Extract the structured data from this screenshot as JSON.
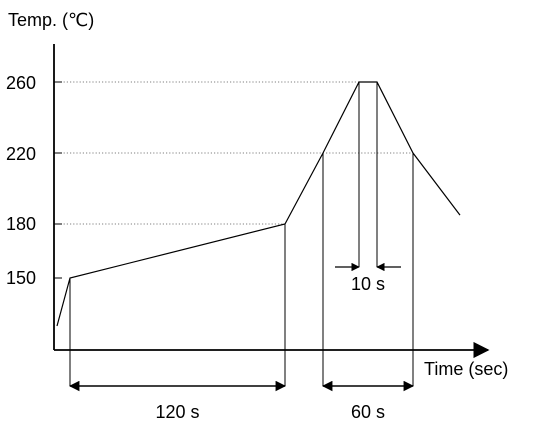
{
  "chart_data": {
    "type": "line",
    "title": "",
    "ylabel": "Temp. (℃)",
    "xlabel": "Time (sec)",
    "yticks": [
      "260",
      "220",
      "180",
      "150"
    ],
    "grid": "dotted reference lines at 260, 220, 180",
    "series": [
      {
        "values_description_only": "",
        "points": [
          {
            "t": -6,
            "temp": 120
          },
          {
            "t": 0,
            "temp": 150
          },
          {
            "t": 120,
            "temp": 180
          },
          {
            "t": 140,
            "temp": 220
          },
          {
            "t": 162,
            "temp": 260
          },
          {
            "t": 172,
            "temp": 260
          },
          {
            "t": 200,
            "temp": 220
          },
          {
            "t": 225,
            "temp": 185
          }
        ]
      }
    ],
    "annotations": [
      {
        "label": "120 s",
        "from_t": 0,
        "to_t": 120,
        "kind": "dimension-below-axis"
      },
      {
        "label": "60 s",
        "from_t": 140,
        "to_t": 200,
        "kind": "dimension-below-axis"
      },
      {
        "label": "10 s",
        "from_t": 162,
        "to_t": 172,
        "kind": "dimension-above-axis"
      }
    ]
  }
}
